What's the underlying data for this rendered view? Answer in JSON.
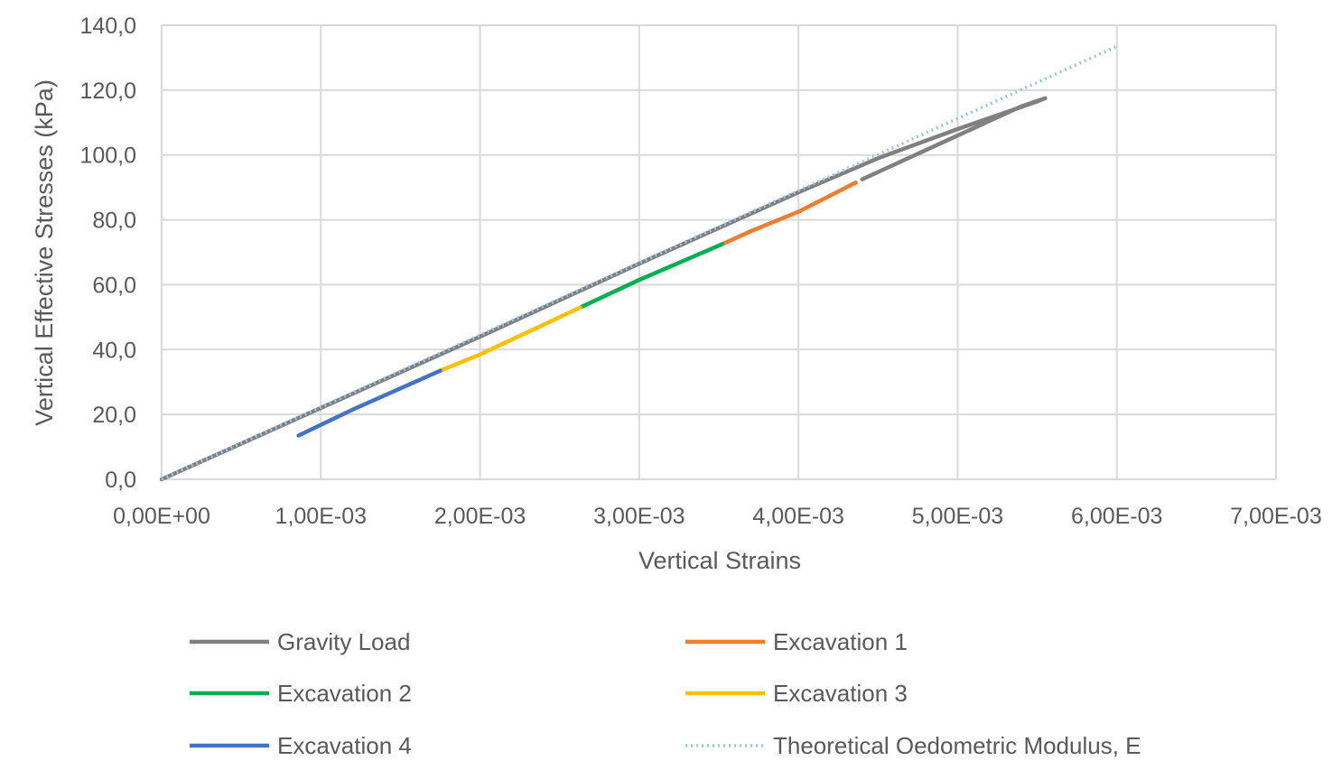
{
  "chart_data": {
    "type": "line",
    "title": "",
    "xlabel": "Vertical Strains",
    "ylabel": "Vertical Effective Stresses (kPa)",
    "xlim": [
      0,
      0.007
    ],
    "ylim": [
      0,
      140
    ],
    "x_ticks": [
      0,
      0.001,
      0.002,
      0.003,
      0.004,
      0.005,
      0.006,
      0.007
    ],
    "x_tick_labels": [
      "0,00E+00",
      "1,00E-03",
      "2,00E-03",
      "3,00E-03",
      "4,00E-03",
      "5,00E-03",
      "6,00E-03",
      "7,00E-03"
    ],
    "y_ticks": [
      0,
      20,
      40,
      60,
      80,
      100,
      120,
      140
    ],
    "y_tick_labels": [
      "0,0",
      "20,0",
      "40,0",
      "60,0",
      "80,0",
      "100,0",
      "120,0",
      "140,0"
    ],
    "grid": true,
    "legend_position": "bottom",
    "series": [
      {
        "name": "Gravity Load",
        "color": "#808080",
        "dash": "solid",
        "x": [
          0,
          0.001,
          0.002,
          0.003,
          0.004,
          0.0045,
          0.005,
          0.0055,
          0.00555,
          0.0054,
          0.0052,
          0.005,
          0.0048,
          0.0046,
          0.0044
        ],
        "y": [
          0,
          22,
          44,
          66.5,
          88.5,
          99,
          108,
          116.5,
          117.5,
          115,
          110.5,
          106,
          101.5,
          97,
          92.5
        ]
      },
      {
        "name": "Excavation 1",
        "color": "#ED7D31",
        "dash": "solid",
        "x": [
          0.00436,
          0.004,
          0.0037,
          0.00352
        ],
        "y": [
          91.5,
          82.5,
          76.5,
          72.5
        ]
      },
      {
        "name": "Excavation 2",
        "color": "#00B050",
        "dash": "solid",
        "x": [
          0.00352,
          0.003,
          0.00263
        ],
        "y": [
          72.5,
          61.5,
          53
        ]
      },
      {
        "name": "Excavation 3",
        "color": "#FFC000",
        "dash": "solid",
        "x": [
          0.00263,
          0.002,
          0.00175
        ],
        "y": [
          53,
          38.5,
          33.5
        ]
      },
      {
        "name": "Excavation 4",
        "color": "#4472C4",
        "dash": "solid",
        "x": [
          0.00175,
          0.0012,
          0.00086
        ],
        "y": [
          33.5,
          21.5,
          13.5
        ]
      },
      {
        "name": "Theoretical Oedometric Modulus, E",
        "color": "#9DC3E6",
        "dash": "dotted",
        "x": [
          0,
          0.006
        ],
        "y": [
          0,
          133.5
        ]
      }
    ]
  }
}
